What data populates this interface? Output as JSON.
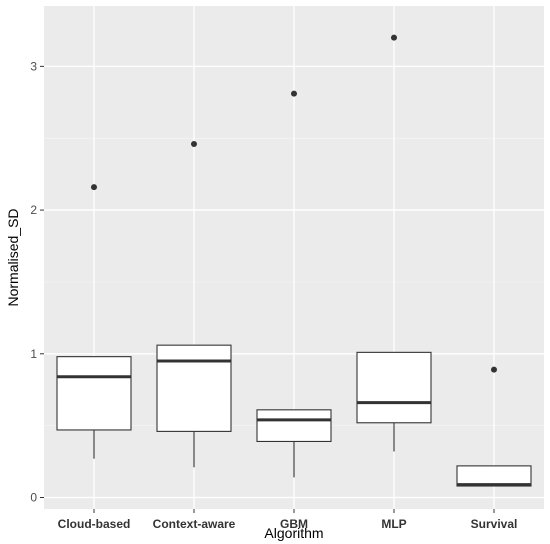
{
  "chart_data": {
    "type": "boxplot",
    "xlabel": "Algorithm",
    "ylabel": "Normalised_SD",
    "ylim": [
      -0.08,
      3.42
    ],
    "yticks": [
      "0",
      "1",
      "2",
      "3"
    ],
    "ytick_values": [
      0,
      1,
      2,
      3
    ],
    "grid": true,
    "background": "#ebebeb",
    "categories": [
      "Cloud-based",
      "Context-aware",
      "GBM",
      "MLP",
      "Survival"
    ],
    "boxes": [
      {
        "lower_whisker": 0.27,
        "q1": 0.47,
        "median": 0.84,
        "q3": 0.98,
        "upper_whisker": 0.98,
        "outliers": [
          2.16
        ]
      },
      {
        "lower_whisker": 0.21,
        "q1": 0.46,
        "median": 0.95,
        "q3": 1.06,
        "upper_whisker": 1.06,
        "outliers": [
          2.46
        ]
      },
      {
        "lower_whisker": 0.14,
        "q1": 0.39,
        "median": 0.54,
        "q3": 0.61,
        "upper_whisker": 0.61,
        "outliers": [
          2.81
        ]
      },
      {
        "lower_whisker": 0.32,
        "q1": 0.52,
        "median": 0.66,
        "q3": 1.01,
        "upper_whisker": 1.01,
        "outliers": [
          3.2
        ]
      },
      {
        "lower_whisker": 0.08,
        "q1": 0.08,
        "median": 0.09,
        "q3": 0.22,
        "upper_whisker": 0.22,
        "outliers": [
          0.89
        ]
      }
    ]
  }
}
